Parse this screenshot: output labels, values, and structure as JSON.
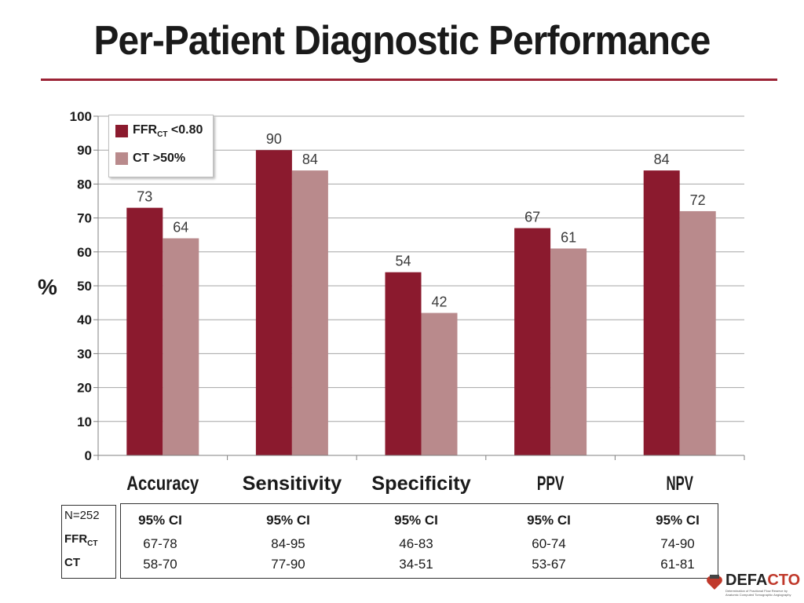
{
  "title": "Per-Patient Diagnostic Performance",
  "chart_data": {
    "type": "bar",
    "title": "Per-Patient Diagnostic Performance",
    "ylabel": "%",
    "xlabel": "",
    "ylim": [
      0,
      100
    ],
    "yticks": [
      0,
      10,
      20,
      30,
      40,
      50,
      60,
      70,
      80,
      90,
      100
    ],
    "grid": true,
    "legend_position": "top-left",
    "categories": [
      "Accuracy",
      "Sensitivity",
      "Specificity",
      "PPV",
      "NPV"
    ],
    "series": [
      {
        "name": "FFRCT <0.80",
        "name_main": "FFR",
        "name_sub": "CT",
        "name_rest": " <0.80",
        "color": "#8b1a2e",
        "values": [
          73,
          90,
          54,
          67,
          84
        ]
      },
      {
        "name": "CT >50%",
        "name_main": "CT ",
        "name_sub": "",
        "name_rest": ">50%",
        "color": "#b98a8c",
        "values": [
          64,
          84,
          42,
          61,
          72
        ]
      }
    ]
  },
  "ci_table": {
    "n_label": "N=252",
    "row1_main": "FFR",
    "row1_sub": "CT",
    "row2": "CT",
    "header": "95% CI",
    "ffrct": [
      "67-78",
      "84-95",
      "46-83",
      "60-74",
      "74-90"
    ],
    "ct": [
      "58-70",
      "77-90",
      "34-51",
      "53-67",
      "61-81"
    ]
  },
  "logo": {
    "brand_main": "DEFA",
    "brand_accent": "CTO",
    "subtitle": "Determination of Fractional Flow Reserve by Anatomic Computed Tomographic Angiography"
  }
}
